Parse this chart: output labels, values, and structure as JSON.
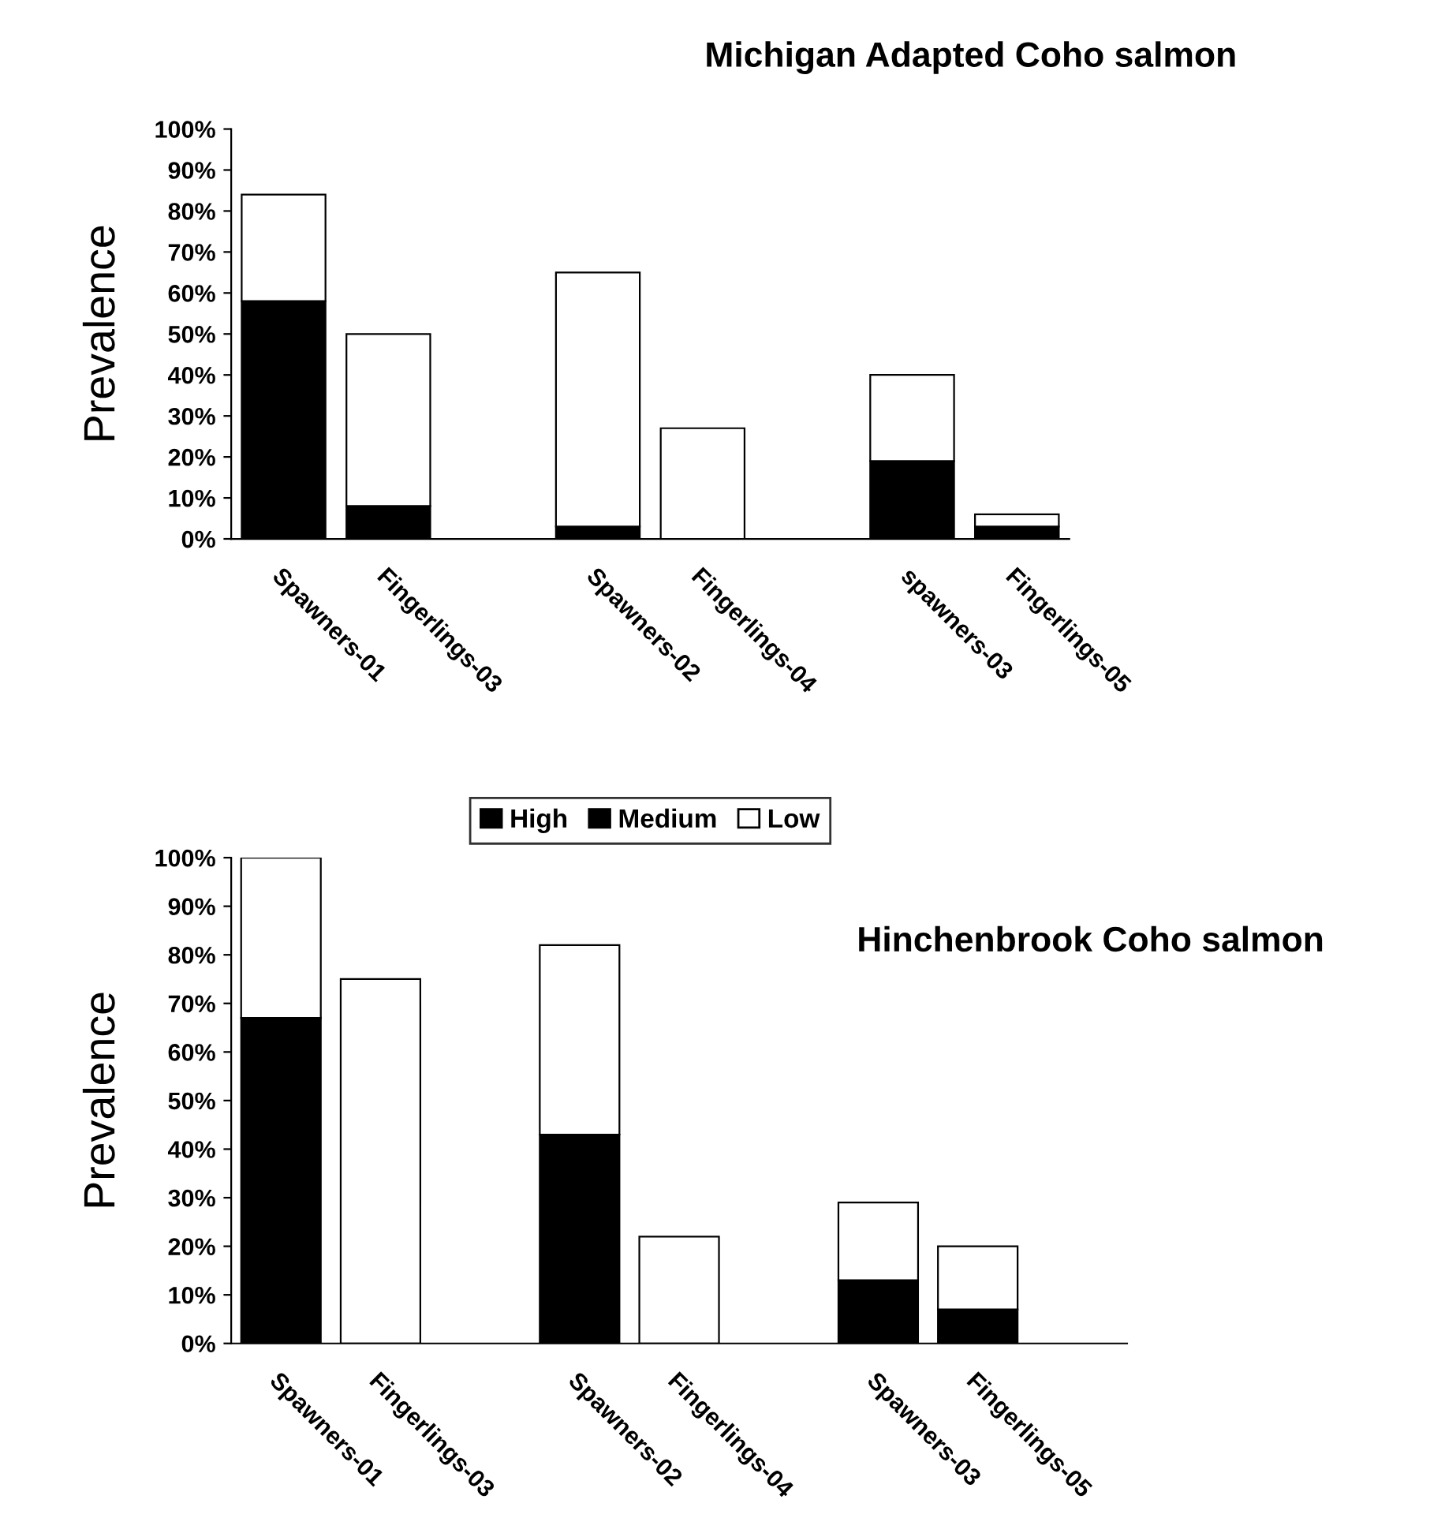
{
  "chart_data": [
    {
      "type": "bar",
      "title": "Michigan Adapted Coho salmon",
      "ylabel": "Prevalence",
      "stacked": true,
      "legend": "bottom",
      "categories": [
        "Spawners-01",
        "Fingerlings-03",
        null,
        "Spawners-02",
        "Fingerlings-04",
        null,
        "spawners-03",
        "Fingerlings-05"
      ],
      "series": [
        {
          "name": "High",
          "color": "#000000",
          "values": [
            58,
            8,
            null,
            3,
            0,
            null,
            19,
            3
          ]
        },
        {
          "name": "Medium",
          "color": "#000000",
          "values": [
            0,
            0,
            null,
            0,
            0,
            null,
            0,
            0
          ]
        },
        {
          "name": "Low",
          "color": "#ffffff",
          "values": [
            26,
            42,
            null,
            62,
            27,
            null,
            21,
            3
          ]
        }
      ],
      "ylim": [
        0,
        100
      ],
      "yticks": [
        {
          "value": 0,
          "label": "0%"
        },
        {
          "value": 10,
          "label": "10%"
        },
        {
          "value": 20,
          "label": "20%"
        },
        {
          "value": 30,
          "label": "30%"
        },
        {
          "value": 40,
          "label": "40%"
        },
        {
          "value": 50,
          "label": "50%"
        },
        {
          "value": 60,
          "label": "60%"
        },
        {
          "value": 70,
          "label": "70%"
        },
        {
          "value": 80,
          "label": "80%"
        },
        {
          "value": 90,
          "label": "90%"
        },
        {
          "value": 100,
          "label": "100%"
        }
      ]
    },
    {
      "type": "bar",
      "title": "Hinchenbrook Coho salmon",
      "ylabel": "Prevalence",
      "stacked": true,
      "categories": [
        "Spawners-01",
        "Fingerlings-03",
        null,
        "Spawners-02",
        "Fingerlings-04",
        null,
        "Spawners-03",
        "Fingerlings-05",
        null
      ],
      "series": [
        {
          "color": "#000000",
          "values": [
            67,
            0,
            null,
            43,
            0,
            null,
            13,
            7,
            null
          ]
        },
        {
          "color": "#000000",
          "values": [
            0,
            0,
            null,
            0,
            0,
            null,
            0,
            0,
            null
          ]
        },
        {
          "color": "#ffffff",
          "values": [
            33,
            75,
            null,
            39,
            22,
            null,
            16,
            13,
            null
          ]
        }
      ],
      "ylim": [
        0,
        100
      ],
      "yticks": [
        {
          "value": 0,
          "label": "0%"
        },
        {
          "value": 10,
          "label": "10%"
        },
        {
          "value": 20,
          "label": "20%"
        },
        {
          "value": 30,
          "label": "30%"
        },
        {
          "value": 40,
          "label": "40%"
        },
        {
          "value": 50,
          "label": "50%"
        },
        {
          "value": 60,
          "label": "60%"
        },
        {
          "value": 70,
          "label": "70%"
        },
        {
          "value": 80,
          "label": "80%"
        },
        {
          "value": 90,
          "label": "90%"
        },
        {
          "value": 100,
          "label": "100%"
        }
      ]
    }
  ]
}
